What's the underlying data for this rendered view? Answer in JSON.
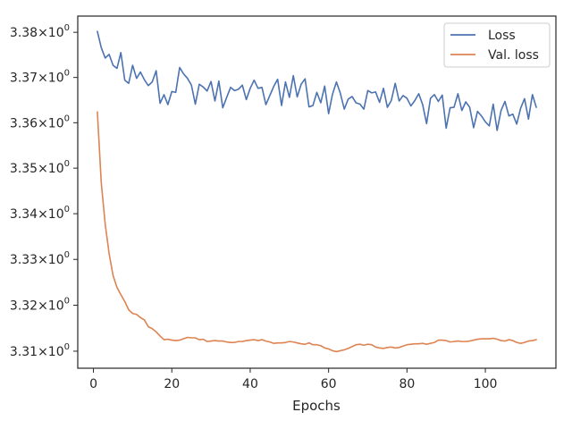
{
  "chart_data": {
    "type": "line",
    "title": "",
    "xlabel": "Epochs",
    "ylabel": "",
    "xlim": [
      -4,
      118
    ],
    "ylim": [
      3.3063,
      3.3836
    ],
    "yscale": "log",
    "grid": false,
    "legend_placement": "top-right",
    "x_ticks": [
      0,
      20,
      40,
      60,
      80,
      100
    ],
    "x_tick_labels": [
      "0",
      "20",
      "40",
      "60",
      "80",
      "100"
    ],
    "y_ticks": [
      3.31,
      3.32,
      3.33,
      3.34,
      3.35,
      3.36,
      3.37,
      3.38
    ],
    "y_tick_labels": [
      {
        "base": "3.31",
        "exp": "0"
      },
      {
        "base": "3.32",
        "exp": "0"
      },
      {
        "base": "3.33",
        "exp": "0"
      },
      {
        "base": "3.34",
        "exp": "0"
      },
      {
        "base": "3.35",
        "exp": "0"
      },
      {
        "base": "3.36",
        "exp": "0"
      },
      {
        "base": "3.37",
        "exp": "0"
      },
      {
        "base": "3.38",
        "exp": "0"
      }
    ],
    "colors": {
      "loss": "#4c72b0",
      "val_loss": "#dd8452"
    },
    "series": [
      {
        "name": "Loss",
        "values": [
          3.3802,
          3.3766,
          3.3743,
          3.3751,
          3.3727,
          3.372,
          3.3755,
          3.3694,
          3.3687,
          3.3727,
          3.3698,
          3.3712,
          3.3695,
          3.3682,
          3.369,
          3.3715,
          3.3643,
          3.3662,
          3.364,
          3.3669,
          3.3667,
          3.3722,
          3.3708,
          3.3698,
          3.3683,
          3.3641,
          3.3685,
          3.3679,
          3.367,
          3.3691,
          3.3648,
          3.3692,
          3.3633,
          3.3656,
          3.3678,
          3.3671,
          3.3674,
          3.3683,
          3.3651,
          3.3676,
          3.3694,
          3.3676,
          3.3678,
          3.364,
          3.366,
          3.368,
          3.3696,
          3.3638,
          3.369,
          3.3656,
          3.3704,
          3.3657,
          3.3685,
          3.3697,
          3.3635,
          3.3638,
          3.3667,
          3.3644,
          3.3681,
          3.362,
          3.3663,
          3.369,
          3.3665,
          3.363,
          3.3652,
          3.3658,
          3.3644,
          3.3641,
          3.363,
          3.3671,
          3.3666,
          3.3668,
          3.3645,
          3.3676,
          3.3634,
          3.3649,
          3.3687,
          3.3648,
          3.366,
          3.3654,
          3.3637,
          3.3649,
          3.3664,
          3.364,
          3.3598,
          3.3654,
          3.3662,
          3.3647,
          3.3661,
          3.3588,
          3.3633,
          3.3634,
          3.3664,
          3.3627,
          3.3646,
          3.3634,
          3.3589,
          3.3625,
          3.3615,
          3.3602,
          3.3593,
          3.3641,
          3.3583,
          3.3627,
          3.3647,
          3.3615,
          3.3619,
          3.3597,
          3.3632,
          3.3653,
          3.3608,
          3.3662,
          3.3634
        ]
      },
      {
        "name": "Val. loss",
        "values": [
          3.3624,
          3.3468,
          3.3377,
          3.3313,
          3.3265,
          3.3239,
          3.3223,
          3.3208,
          3.319,
          3.3182,
          3.318,
          3.3173,
          3.3168,
          3.3153,
          3.3149,
          3.3142,
          3.3133,
          3.3125,
          3.3126,
          3.3124,
          3.3123,
          3.3124,
          3.3127,
          3.313,
          3.3129,
          3.3129,
          3.3125,
          3.3126,
          3.3121,
          3.3122,
          3.3123,
          3.3122,
          3.3122,
          3.312,
          3.3119,
          3.3119,
          3.3121,
          3.3121,
          3.3123,
          3.3124,
          3.3125,
          3.3123,
          3.3125,
          3.3122,
          3.312,
          3.3117,
          3.3118,
          3.3118,
          3.3119,
          3.3121,
          3.312,
          3.3118,
          3.3116,
          3.3115,
          3.3118,
          3.3114,
          3.3114,
          3.3112,
          3.3107,
          3.3105,
          3.3101,
          3.3099,
          3.3101,
          3.3103,
          3.3106,
          3.311,
          3.3114,
          3.3115,
          3.3113,
          3.3115,
          3.3114,
          3.3109,
          3.3107,
          3.3106,
          3.3108,
          3.3109,
          3.3107,
          3.3108,
          3.3111,
          3.3114,
          3.3115,
          3.3116,
          3.3116,
          3.3117,
          3.3115,
          3.3117,
          3.3119,
          3.3124,
          3.3124,
          3.3123,
          3.312,
          3.3121,
          3.3122,
          3.3121,
          3.3121,
          3.3122,
          3.3124,
          3.3126,
          3.3127,
          3.3127,
          3.3127,
          3.3128,
          3.3126,
          3.3123,
          3.3122,
          3.3125,
          3.3123,
          3.3119,
          3.3117,
          3.3119,
          3.3122,
          3.3123,
          3.3125
        ]
      }
    ]
  }
}
